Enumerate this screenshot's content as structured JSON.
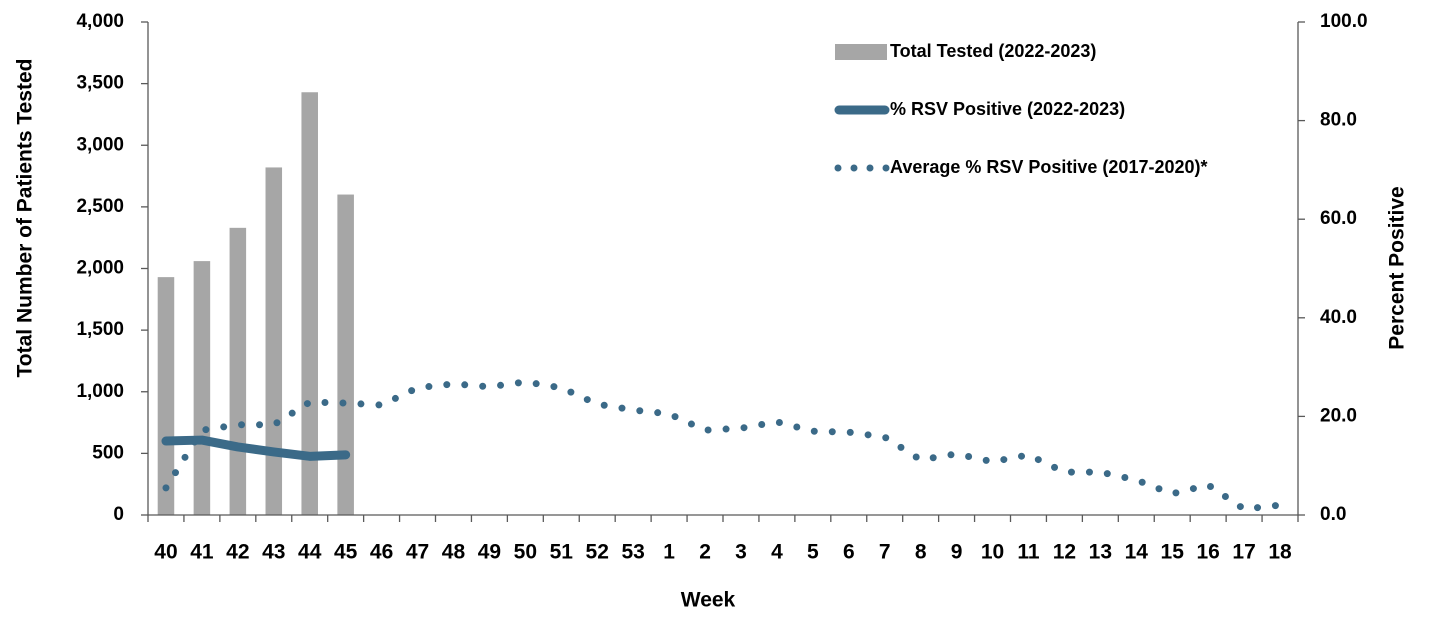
{
  "chart_data": {
    "type": "bar",
    "x_label": "Week",
    "y_label": "Total Number of Patients Tested",
    "y2_label": "Percent Positive",
    "categories": [
      "40",
      "41",
      "42",
      "43",
      "44",
      "45",
      "46",
      "47",
      "48",
      "49",
      "50",
      "51",
      "52",
      "53",
      "1",
      "2",
      "3",
      "4",
      "5",
      "6",
      "7",
      "8",
      "9",
      "10",
      "11",
      "12",
      "13",
      "14",
      "15",
      "16",
      "17",
      "18"
    ],
    "ylim": [
      0,
      4000
    ],
    "yticks": [
      0,
      500,
      {
        "value": 1000,
        "label": "1,000"
      },
      {
        "value": 1500,
        "label": "1,500"
      },
      {
        "value": 2000,
        "label": "2,000"
      },
      {
        "value": 2500,
        "label": "2,500"
      },
      {
        "value": 3000,
        "label": "3,000"
      },
      {
        "value": 3500,
        "label": "3,500"
      },
      {
        "value": 4000,
        "label": "4,000"
      }
    ],
    "y2lim": [
      0,
      100
    ],
    "y2ticks": [
      {
        "value": 0,
        "label": "0.0"
      },
      {
        "value": 20,
        "label": "20.0"
      },
      {
        "value": 40,
        "label": "40.0"
      },
      {
        "value": 60,
        "label": "60.0"
      },
      {
        "value": 80,
        "label": "80.0"
      },
      {
        "value": 100,
        "label": "100.0"
      }
    ],
    "series": [
      {
        "name": "Total Tested (2022-2023)",
        "type": "bar",
        "color": "#a6a6a6",
        "values": [
          1930,
          2060,
          2330,
          2820,
          3430,
          2600,
          null,
          null,
          null,
          null,
          null,
          null,
          null,
          null,
          null,
          null,
          null,
          null,
          null,
          null,
          null,
          null,
          null,
          null,
          null,
          null,
          null,
          null,
          null,
          null,
          null,
          null
        ]
      },
      {
        "name": "% RSV Positive (2022-2023)",
        "type": "line",
        "axis": "y2",
        "color": "#3b6a88",
        "values": [
          15.0,
          15.2,
          13.8,
          12.8,
          11.9,
          12.2,
          null,
          null,
          null,
          null,
          null,
          null,
          null,
          null,
          null,
          null,
          null,
          null,
          null,
          null,
          null,
          null,
          null,
          null,
          null,
          null,
          null,
          null,
          null,
          null,
          null,
          null
        ]
      },
      {
        "name": "Average % RSV Positive (2017-2020)*",
        "type": "dotted",
        "axis": "y2",
        "color": "#3b6a88",
        "values": [
          5.5,
          17.2,
          18.3,
          18.3,
          22.9,
          22.7,
          22.3,
          25.8,
          26.6,
          26.0,
          27.0,
          25.8,
          22.5,
          21.3,
          20.5,
          17.2,
          17.6,
          18.9,
          17.0,
          16.8,
          15.8,
          11.2,
          12.4,
          10.8,
          12.2,
          8.7,
          8.7,
          7.1,
          4.3,
          6.1,
          1.2,
          2.0
        ]
      }
    ]
  }
}
